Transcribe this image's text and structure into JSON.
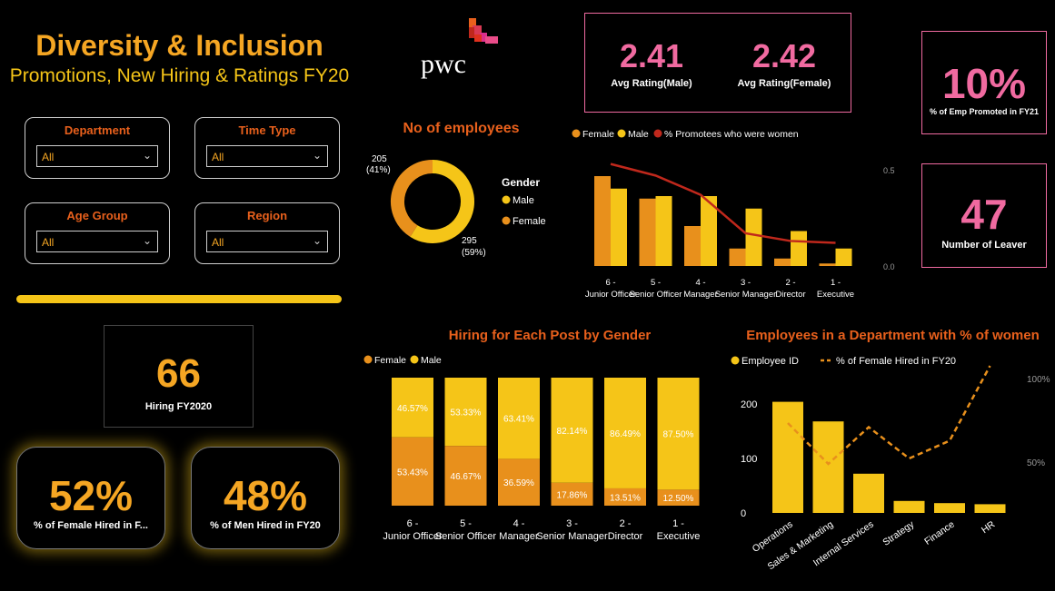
{
  "header": {
    "title": "Diversity & Inclusion",
    "subtitle": "Promotions, New Hiring & Ratings FY20",
    "logo_text": "pwc"
  },
  "filters": [
    {
      "label": "Department",
      "value": "All"
    },
    {
      "label": "Time Type",
      "value": "All"
    },
    {
      "label": "Age Group",
      "value": "All"
    },
    {
      "label": "Region",
      "value": "All"
    }
  ],
  "kpis": {
    "hiring_value": "66",
    "hiring_label": "Hiring FY2020",
    "female_hired_value": "52%",
    "female_hired_label": "% of Female Hired in F...",
    "men_hired_value": "48%",
    "men_hired_label": "% of Men Hired in FY20",
    "avg_rating_male_value": "2.41",
    "avg_rating_male_label": "Avg Rating(Male)",
    "avg_rating_female_value": "2.42",
    "avg_rating_female_label": "Avg Rating(Female)",
    "promoted_value": "10%",
    "promoted_label": "% of Emp Promoted in FY21",
    "leaver_value": "47",
    "leaver_label": "Number of Leaver"
  },
  "colors": {
    "male": "#f5c518",
    "female": "#e8901c",
    "line": "#c0281c",
    "orange": "#e8601c",
    "pink": "#f06aa0"
  },
  "chart_data": [
    {
      "type": "pie",
      "title": "No of employees",
      "legend_title": "Gender",
      "categories": [
        "Male",
        "Female"
      ],
      "values": [
        295,
        205
      ],
      "data_labels": [
        "295\n(59%)",
        "205\n(41%)"
      ],
      "percent_labels": [
        "(59%)",
        "(41%)"
      ]
    },
    {
      "type": "bar",
      "title": "",
      "categories": [
        "6 - Junior Officer",
        "5 - Senior Officer",
        "4 - Manager",
        "3 - Senior Manager",
        "2 - Director",
        "1 - Executive"
      ],
      "series": [
        {
          "name": "Female",
          "values": [
            36,
            27,
            16,
            7,
            3,
            1
          ]
        },
        {
          "name": "Male",
          "values": [
            31,
            28,
            28,
            23,
            14,
            7
          ]
        },
        {
          "name": "% Promotees who were women",
          "values": [
            0.53,
            0.47,
            0.37,
            0.17,
            0.13,
            0.12
          ]
        }
      ],
      "secondary_axis": {
        "ticks": [
          "0.0",
          "0.5"
        ],
        "range": [
          0,
          0.5
        ]
      },
      "legend_placement": "top-left"
    },
    {
      "type": "bar",
      "title": "Hiring for Each Post by Gender",
      "stacked": "100%",
      "categories": [
        "6 - Junior Officer",
        "5 - Senior Officer",
        "4 - Manager",
        "3 - Senior Manager",
        "2 - Director",
        "1 - Executive"
      ],
      "series": [
        {
          "name": "Female",
          "values": [
            53.43,
            46.67,
            36.59,
            17.86,
            13.51,
            12.5
          ]
        },
        {
          "name": "Male",
          "values": [
            46.57,
            53.33,
            63.41,
            82.14,
            86.49,
            87.5
          ]
        }
      ],
      "female_labels": [
        "53.43%",
        "46.67%",
        "36.59%",
        "17.86%",
        "13.51%",
        "12.50%"
      ],
      "male_labels": [
        "46.57%",
        "53.33%",
        "63.41%",
        "82.14%",
        "86.49%",
        "87.50%"
      ],
      "legend_placement": "top-left"
    },
    {
      "type": "bar",
      "title": "Employees in a Department with % of women",
      "categories": [
        "Operations",
        "Sales & Marketing",
        "Internal Services",
        "Strategy",
        "Finance",
        "HR"
      ],
      "series": [
        {
          "name": "Employee ID",
          "values": [
            204,
            168,
            72,
            22,
            18,
            16
          ]
        },
        {
          "name": "% of Female Hired in FY20",
          "values": [
            0.58,
            0.28,
            0.55,
            0.32,
            0.45,
            1.0
          ]
        }
      ],
      "ylim": [
        0,
        250
      ],
      "y_ticks": [
        "0",
        "100",
        "200"
      ],
      "secondary_ticks": [
        "50%",
        "100%"
      ],
      "legend_placement": "top-left"
    }
  ]
}
